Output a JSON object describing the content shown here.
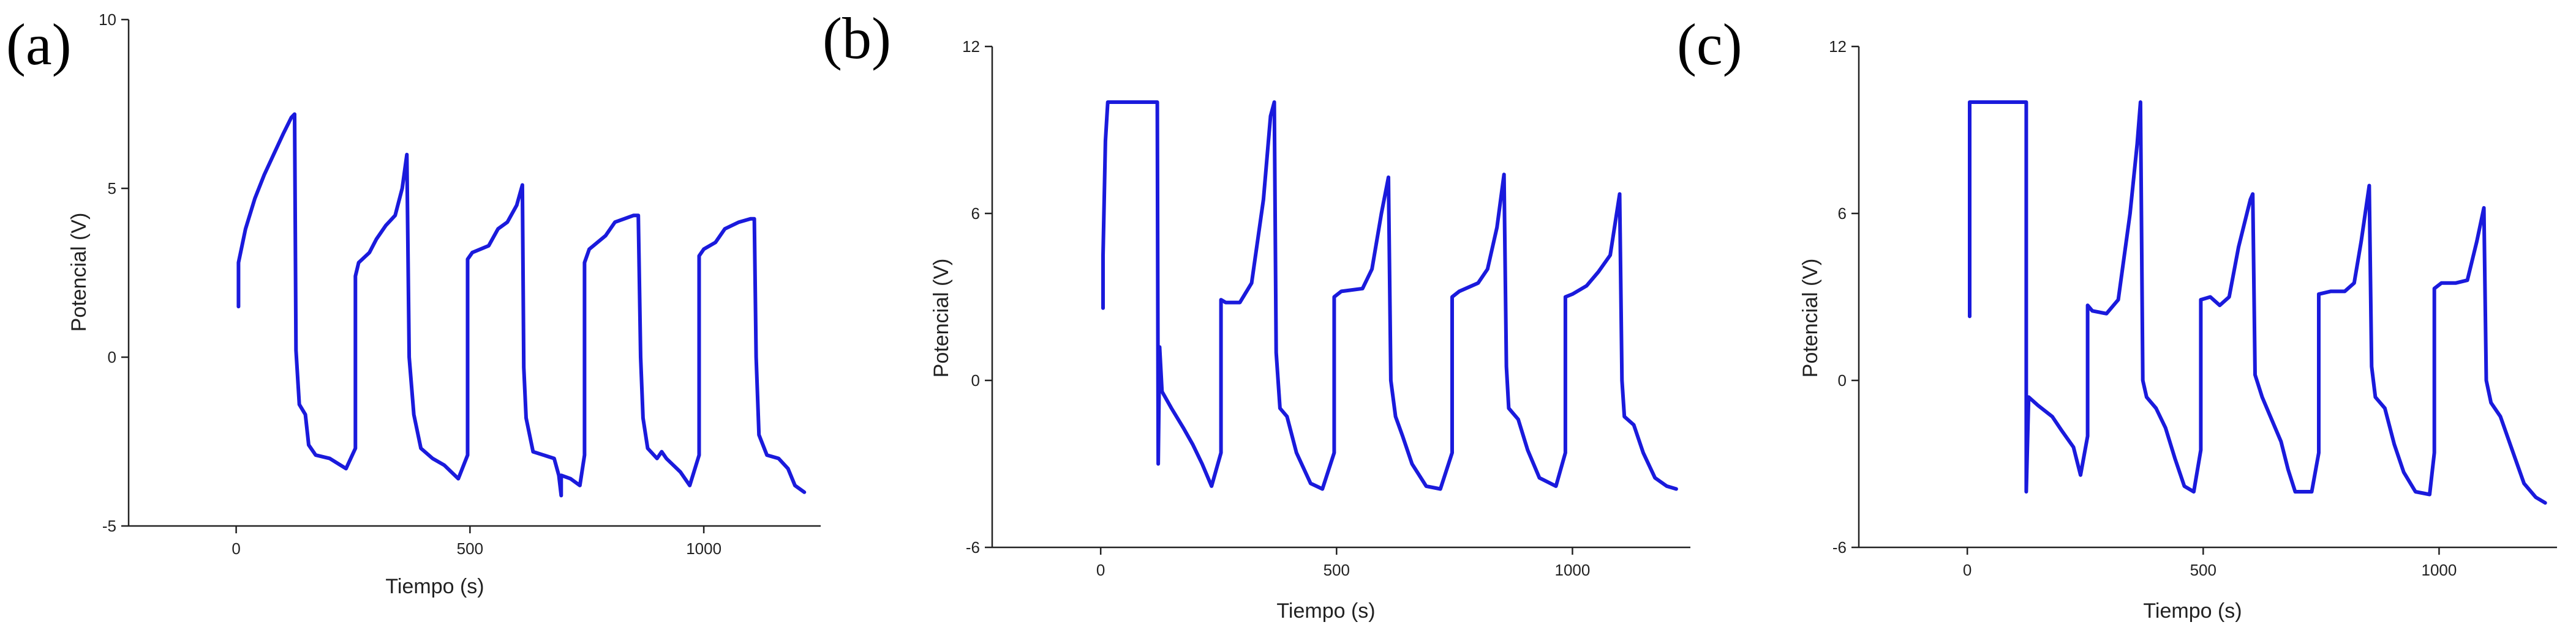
{
  "colors": {
    "series": "#1a1adc",
    "axis": "#222222"
  },
  "chart_data": [
    {
      "type": "line",
      "panel_label": "(a)",
      "xlabel": "Tiempo (s)",
      "ylabel": "Potencial (V)",
      "xlim": [
        -230,
        1250
      ],
      "ylim": [
        -5,
        10
      ],
      "xticks": [
        0,
        500,
        1000
      ],
      "xtick_labels": [
        "0",
        "500",
        "1000"
      ],
      "yticks": [
        -5,
        0,
        5,
        10
      ],
      "ytick_labels": [
        "-5",
        "0",
        "5",
        "10"
      ],
      "series": [
        {
          "points": [
            [
              5,
              1.5
            ],
            [
              5,
              2.8
            ],
            [
              20,
              3.8
            ],
            [
              40,
              4.7
            ],
            [
              60,
              5.4
            ],
            [
              80,
              6.0
            ],
            [
              100,
              6.6
            ],
            [
              118,
              7.1
            ],
            [
              125,
              7.2
            ],
            [
              128,
              0.2
            ],
            [
              135,
              -1.4
            ],
            [
              148,
              -1.7
            ],
            [
              155,
              -2.6
            ],
            [
              170,
              -2.9
            ],
            [
              200,
              -3.0
            ],
            [
              235,
              -3.3
            ],
            [
              255,
              -2.7
            ],
            [
              255,
              2.4
            ],
            [
              262,
              2.8
            ],
            [
              285,
              3.1
            ],
            [
              300,
              3.5
            ],
            [
              320,
              3.9
            ],
            [
              340,
              4.2
            ],
            [
              355,
              5.0
            ],
            [
              365,
              6.0
            ],
            [
              370,
              0.0
            ],
            [
              380,
              -1.7
            ],
            [
              395,
              -2.7
            ],
            [
              420,
              -3.0
            ],
            [
              445,
              -3.2
            ],
            [
              475,
              -3.6
            ],
            [
              495,
              -2.9
            ],
            [
              495,
              2.9
            ],
            [
              505,
              3.1
            ],
            [
              540,
              3.3
            ],
            [
              560,
              3.8
            ],
            [
              580,
              4.0
            ],
            [
              600,
              4.5
            ],
            [
              612,
              5.1
            ],
            [
              615,
              -0.3
            ],
            [
              620,
              -1.8
            ],
            [
              635,
              -2.8
            ],
            [
              680,
              -3.0
            ],
            [
              690,
              -3.5
            ],
            [
              695,
              -4.1
            ],
            [
              695,
              -3.5
            ],
            [
              715,
              -3.6
            ],
            [
              735,
              -3.8
            ],
            [
              745,
              -2.9
            ],
            [
              745,
              2.8
            ],
            [
              755,
              3.2
            ],
            [
              790,
              3.6
            ],
            [
              810,
              4.0
            ],
            [
              850,
              4.2
            ],
            [
              860,
              4.2
            ],
            [
              865,
              0.0
            ],
            [
              870,
              -1.8
            ],
            [
              880,
              -2.7
            ],
            [
              900,
              -3.0
            ],
            [
              910,
              -2.8
            ],
            [
              920,
              -3.0
            ],
            [
              950,
              -3.4
            ],
            [
              970,
              -3.8
            ],
            [
              990,
              -2.9
            ],
            [
              990,
              3.0
            ],
            [
              1000,
              3.2
            ],
            [
              1025,
              3.4
            ],
            [
              1045,
              3.8
            ],
            [
              1075,
              4.0
            ],
            [
              1100,
              4.1
            ],
            [
              1108,
              4.1
            ],
            [
              1112,
              0.0
            ],
            [
              1118,
              -2.3
            ],
            [
              1135,
              -2.9
            ],
            [
              1160,
              -3.0
            ],
            [
              1180,
              -3.3
            ],
            [
              1195,
              -3.8
            ],
            [
              1215,
              -4.0
            ]
          ]
        }
      ]
    },
    {
      "type": "line",
      "panel_label": "(b)",
      "xlabel": "Tiempo (s)",
      "ylabel": "Potencial (V)",
      "xlim": [
        -230,
        1250
      ],
      "ylim": [
        -6,
        12
      ],
      "xticks": [
        0,
        500,
        1000
      ],
      "xtick_labels": [
        "0",
        "500",
        "1000"
      ],
      "yticks": [
        -6,
        0,
        6,
        12
      ],
      "ytick_labels": [
        "-6",
        "0",
        "6",
        "12"
      ],
      "series": [
        {
          "points": [
            [
              5,
              2.6
            ],
            [
              5,
              4.5
            ],
            [
              10,
              8.6
            ],
            [
              15,
              10.0
            ],
            [
              120,
              10.0
            ],
            [
              122,
              -3.0
            ],
            [
              125,
              1.2
            ],
            [
              130,
              -0.4
            ],
            [
              150,
              -1.0
            ],
            [
              175,
              -1.7
            ],
            [
              195,
              -2.3
            ],
            [
              215,
              -3.0
            ],
            [
              235,
              -3.8
            ],
            [
              255,
              -2.6
            ],
            [
              255,
              2.9
            ],
            [
              265,
              2.8
            ],
            [
              295,
              2.8
            ],
            [
              320,
              3.5
            ],
            [
              345,
              6.5
            ],
            [
              360,
              9.5
            ],
            [
              368,
              10.0
            ],
            [
              372,
              1.0
            ],
            [
              380,
              -1.0
            ],
            [
              395,
              -1.3
            ],
            [
              415,
              -2.6
            ],
            [
              445,
              -3.7
            ],
            [
              470,
              -3.9
            ],
            [
              495,
              -2.6
            ],
            [
              495,
              3.0
            ],
            [
              510,
              3.2
            ],
            [
              555,
              3.3
            ],
            [
              575,
              4.0
            ],
            [
              595,
              6.0
            ],
            [
              610,
              7.3
            ],
            [
              615,
              0.0
            ],
            [
              625,
              -1.3
            ],
            [
              640,
              -2.0
            ],
            [
              660,
              -3.0
            ],
            [
              690,
              -3.8
            ],
            [
              720,
              -3.9
            ],
            [
              745,
              -2.6
            ],
            [
              745,
              3.0
            ],
            [
              760,
              3.2
            ],
            [
              800,
              3.5
            ],
            [
              820,
              4.0
            ],
            [
              840,
              5.5
            ],
            [
              855,
              7.4
            ],
            [
              860,
              0.5
            ],
            [
              865,
              -1.0
            ],
            [
              885,
              -1.4
            ],
            [
              905,
              -2.5
            ],
            [
              930,
              -3.5
            ],
            [
              965,
              -3.8
            ],
            [
              985,
              -2.6
            ],
            [
              985,
              3.0
            ],
            [
              1000,
              3.1
            ],
            [
              1030,
              3.4
            ],
            [
              1055,
              3.9
            ],
            [
              1080,
              4.5
            ],
            [
              1100,
              6.7
            ],
            [
              1105,
              0.0
            ],
            [
              1110,
              -1.3
            ],
            [
              1130,
              -1.6
            ],
            [
              1150,
              -2.6
            ],
            [
              1175,
              -3.5
            ],
            [
              1200,
              -3.8
            ],
            [
              1220,
              -3.9
            ]
          ]
        }
      ]
    },
    {
      "type": "line",
      "panel_label": "(c)",
      "xlabel": "Tiempo (s)",
      "ylabel": "Potencial (V)",
      "xlim": [
        -230,
        1250
      ],
      "ylim": [
        -6,
        12
      ],
      "xticks": [
        0,
        500,
        1000
      ],
      "xtick_labels": [
        "0",
        "500",
        "1000"
      ],
      "yticks": [
        -6,
        0,
        6,
        12
      ],
      "ytick_labels": [
        "-6",
        "0",
        "6",
        "12"
      ],
      "series": [
        {
          "points": [
            [
              5,
              2.3
            ],
            [
              5,
              10.0
            ],
            [
              125,
              10.0
            ],
            [
              125,
              -4.0
            ],
            [
              130,
              -0.6
            ],
            [
              150,
              -0.9
            ],
            [
              180,
              -1.3
            ],
            [
              200,
              -1.8
            ],
            [
              225,
              -2.4
            ],
            [
              240,
              -3.4
            ],
            [
              255,
              -2.0
            ],
            [
              255,
              2.7
            ],
            [
              265,
              2.5
            ],
            [
              295,
              2.4
            ],
            [
              320,
              2.9
            ],
            [
              345,
              6.0
            ],
            [
              360,
              8.5
            ],
            [
              367,
              10.0
            ],
            [
              372,
              0.0
            ],
            [
              380,
              -0.6
            ],
            [
              400,
              -1.0
            ],
            [
              420,
              -1.7
            ],
            [
              440,
              -2.8
            ],
            [
              460,
              -3.8
            ],
            [
              480,
              -4.0
            ],
            [
              495,
              -2.5
            ],
            [
              495,
              2.9
            ],
            [
              515,
              3.0
            ],
            [
              535,
              2.7
            ],
            [
              555,
              3.0
            ],
            [
              575,
              4.8
            ],
            [
              600,
              6.5
            ],
            [
              605,
              6.7
            ],
            [
              610,
              0.2
            ],
            [
              625,
              -0.6
            ],
            [
              640,
              -1.2
            ],
            [
              665,
              -2.2
            ],
            [
              680,
              -3.2
            ],
            [
              695,
              -4.0
            ],
            [
              730,
              -4.0
            ],
            [
              745,
              -2.6
            ],
            [
              745,
              3.1
            ],
            [
              770,
              3.2
            ],
            [
              800,
              3.2
            ],
            [
              820,
              3.5
            ],
            [
              835,
              5.0
            ],
            [
              852,
              7.0
            ],
            [
              857,
              0.5
            ],
            [
              865,
              -0.6
            ],
            [
              885,
              -1.0
            ],
            [
              905,
              -2.3
            ],
            [
              925,
              -3.3
            ],
            [
              950,
              -4.0
            ],
            [
              980,
              -4.1
            ],
            [
              990,
              -2.6
            ],
            [
              990,
              3.3
            ],
            [
              1005,
              3.5
            ],
            [
              1035,
              3.5
            ],
            [
              1060,
              3.6
            ],
            [
              1080,
              5.0
            ],
            [
              1095,
              6.2
            ],
            [
              1100,
              0.0
            ],
            [
              1110,
              -0.8
            ],
            [
              1130,
              -1.3
            ],
            [
              1155,
              -2.5
            ],
            [
              1180,
              -3.7
            ],
            [
              1205,
              -4.2
            ],
            [
              1225,
              -4.4
            ]
          ]
        }
      ]
    }
  ]
}
